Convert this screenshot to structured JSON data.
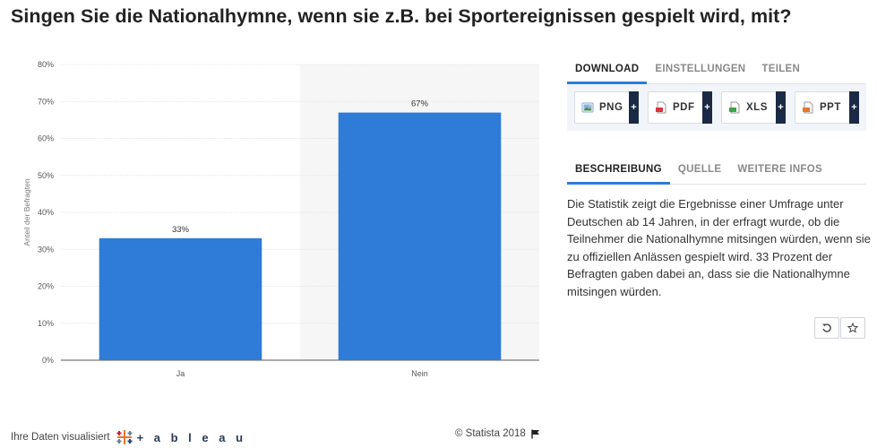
{
  "title": "Singen Sie die Nationalhymne, wenn sie z.B. bei Sportereignissen gespielt wird, mit?",
  "chart_data": {
    "type": "bar",
    "categories": [
      "Ja",
      "Nein"
    ],
    "values": [
      33,
      67
    ],
    "data_labels": [
      "33%",
      "67%"
    ],
    "ylabel": "Anteil der Befragten",
    "ylim": [
      0,
      80
    ],
    "yticks": [
      0,
      10,
      20,
      30,
      40,
      50,
      60,
      70,
      80
    ],
    "ytick_labels": [
      "0%",
      "10%",
      "20%",
      "30%",
      "40%",
      "50%",
      "60%",
      "70%",
      "80%"
    ],
    "grid": true,
    "bar_color": "#2e7bd8",
    "highlight_category": "Nein",
    "highlight_color": "#f6f6f6"
  },
  "footer": {
    "visualized_by": "Ihre Daten visualisiert",
    "tableau": "+ a b l e a u",
    "copyright": "© Statista 2018"
  },
  "panel": {
    "tabs": [
      "DOWNLOAD",
      "EINSTELLUNGEN",
      "TEILEN"
    ],
    "downloads": [
      {
        "label": "PNG",
        "icon": "png-file-icon",
        "color": "#4a90d9"
      },
      {
        "label": "PDF",
        "icon": "pdf-file-icon",
        "color": "#d9363e"
      },
      {
        "label": "XLS",
        "icon": "xls-file-icon",
        "color": "#3ca54a"
      },
      {
        "label": "PPT",
        "icon": "ppt-file-icon",
        "color": "#e8772e"
      }
    ],
    "plus": "+",
    "desc_tabs": [
      "BESCHREIBUNG",
      "QUELLE",
      "WEITERE INFOS"
    ],
    "description": "Die Statistik zeigt die Ergebnisse einer Umfrage unter Deutschen ab 14 Jahren, in der erfragt wurde, ob die Teilnehmer die Nationalhymne mitsingen würden, wenn sie zu offiziellen Anlässen gespielt wird. 33 Prozent der Befragten gaben dabei an, dass sie die Nationalhymne mitsingen würden."
  }
}
